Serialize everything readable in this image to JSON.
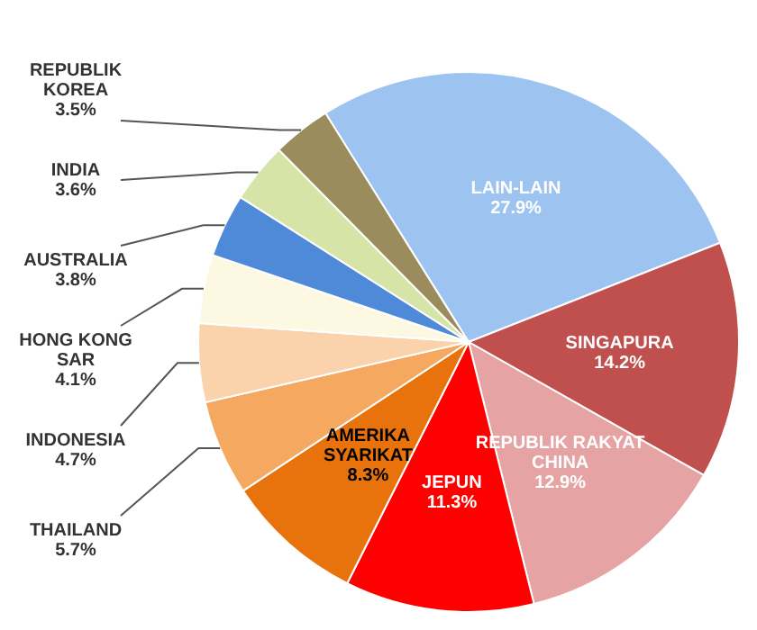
{
  "chart_data": {
    "type": "pie",
    "categories": [
      "LAIN-LAIN",
      "SINGAPURA",
      "REPUBLIK RAKYAT CHINA",
      "JEPUN",
      "AMERIKA SYARIKAT",
      "THAILAND",
      "INDONESIA",
      "HONG KONG SAR",
      "AUSTRALIA",
      "INDIA",
      "REPUBLIK KOREA"
    ],
    "values": [
      27.9,
      14.2,
      12.9,
      11.3,
      8.3,
      5.7,
      4.7,
      4.1,
      3.8,
      3.6,
      3.5
    ],
    "value_labels": [
      "27.9%",
      "14.2%",
      "12.9%",
      "11.3%",
      "8.3%",
      "5.7%",
      "4.7%",
      "4.1%",
      "3.8%",
      "3.6%",
      "3.5%"
    ],
    "colors": [
      "#9dc3f0",
      "#c0504d",
      "#e6a3a3",
      "#ff0000",
      "#e8720c",
      "#f5a860",
      "#fad2ac",
      "#fdf8e2",
      "#4f8ad8",
      "#d6e4a8",
      "#9a8c5c"
    ]
  }
}
